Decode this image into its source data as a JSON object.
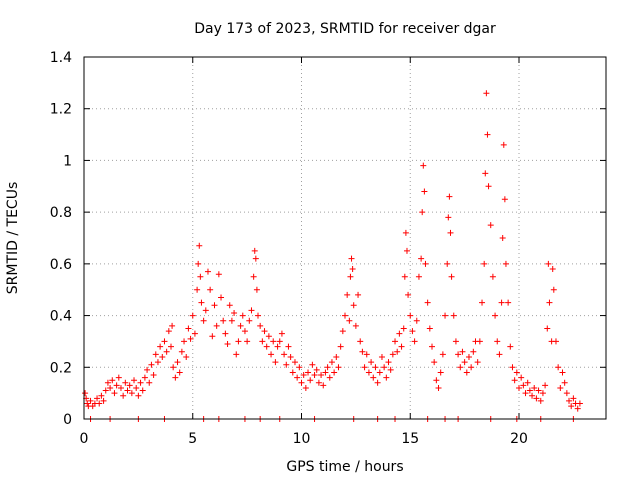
{
  "chart_data": {
    "type": "scatter",
    "title": "Day 173 of 2023, SRMTID for receiver dgar",
    "xlabel": "GPS time / hours",
    "ylabel": "SRMTID / TECUs",
    "xlim": [
      0,
      24
    ],
    "ylim": [
      0,
      1.4
    ],
    "xticks": [
      0,
      5,
      10,
      15,
      20
    ],
    "xtick_labels": [
      "0",
      "5",
      "10",
      "15",
      "20"
    ],
    "yticks": [
      0,
      0.2,
      0.4,
      0.6,
      0.8,
      1.0,
      1.2,
      1.4
    ],
    "ytick_labels": [
      "0",
      "0.2",
      "0.4",
      "0.6",
      "0.8",
      "1",
      "1.2",
      "1.4"
    ],
    "grid": true,
    "marker": "+",
    "color": "#ff0000",
    "series": [
      {
        "name": "SRMTID",
        "points": [
          [
            0.05,
            0.1
          ],
          [
            0.1,
            0.08
          ],
          [
            0.15,
            0.06
          ],
          [
            0.2,
            0.05
          ],
          [
            0.3,
            0.07
          ],
          [
            0.4,
            0.05
          ],
          [
            0.5,
            0.06
          ],
          [
            0.6,
            0.08
          ],
          [
            0.7,
            0.06
          ],
          [
            0.8,
            0.09
          ],
          [
            0.9,
            0.07
          ],
          [
            1.0,
            0.11
          ],
          [
            1.1,
            0.14
          ],
          [
            1.2,
            0.12
          ],
          [
            1.3,
            0.15
          ],
          [
            1.4,
            0.1
          ],
          [
            1.5,
            0.13
          ],
          [
            1.6,
            0.16
          ],
          [
            1.7,
            0.12
          ],
          [
            1.8,
            0.09
          ],
          [
            1.9,
            0.14
          ],
          [
            2.0,
            0.11
          ],
          [
            2.1,
            0.13
          ],
          [
            2.2,
            0.1
          ],
          [
            2.3,
            0.15
          ],
          [
            2.4,
            0.12
          ],
          [
            2.5,
            0.09
          ],
          [
            2.6,
            0.14
          ],
          [
            2.7,
            0.11
          ],
          [
            2.8,
            0.16
          ],
          [
            2.9,
            0.19
          ],
          [
            3.0,
            0.14
          ],
          [
            3.1,
            0.21
          ],
          [
            3.2,
            0.17
          ],
          [
            3.3,
            0.25
          ],
          [
            3.4,
            0.22
          ],
          [
            3.5,
            0.28
          ],
          [
            3.6,
            0.24
          ],
          [
            3.7,
            0.3
          ],
          [
            3.8,
            0.26
          ],
          [
            3.9,
            0.34
          ],
          [
            4.0,
            0.28
          ],
          [
            4.05,
            0.36
          ],
          [
            4.1,
            0.2
          ],
          [
            4.2,
            0.16
          ],
          [
            4.3,
            0.22
          ],
          [
            4.4,
            0.18
          ],
          [
            4.5,
            0.26
          ],
          [
            4.6,
            0.3
          ],
          [
            4.7,
            0.24
          ],
          [
            4.8,
            0.35
          ],
          [
            4.9,
            0.31
          ],
          [
            5.0,
            0.4
          ],
          [
            5.1,
            0.33
          ],
          [
            5.2,
            0.5
          ],
          [
            5.25,
            0.6
          ],
          [
            5.3,
            0.67
          ],
          [
            5.35,
            0.55
          ],
          [
            5.4,
            0.45
          ],
          [
            5.5,
            0.38
          ],
          [
            5.6,
            0.42
          ],
          [
            5.7,
            0.57
          ],
          [
            5.8,
            0.5
          ],
          [
            5.9,
            0.32
          ],
          [
            6.0,
            0.44
          ],
          [
            6.1,
            0.36
          ],
          [
            6.2,
            0.56
          ],
          [
            6.3,
            0.47
          ],
          [
            6.4,
            0.38
          ],
          [
            6.5,
            0.33
          ],
          [
            6.6,
            0.29
          ],
          [
            6.7,
            0.44
          ],
          [
            6.8,
            0.38
          ],
          [
            6.9,
            0.41
          ],
          [
            7.0,
            0.25
          ],
          [
            7.1,
            0.3
          ],
          [
            7.2,
            0.36
          ],
          [
            7.3,
            0.4
          ],
          [
            7.4,
            0.34
          ],
          [
            7.5,
            0.3
          ],
          [
            7.6,
            0.38
          ],
          [
            7.7,
            0.42
          ],
          [
            7.8,
            0.55
          ],
          [
            7.85,
            0.65
          ],
          [
            7.9,
            0.62
          ],
          [
            7.95,
            0.5
          ],
          [
            8.0,
            0.4
          ],
          [
            8.1,
            0.36
          ],
          [
            8.2,
            0.3
          ],
          [
            8.3,
            0.34
          ],
          [
            8.4,
            0.28
          ],
          [
            8.5,
            0.32
          ],
          [
            8.6,
            0.25
          ],
          [
            8.7,
            0.3
          ],
          [
            8.8,
            0.22
          ],
          [
            8.9,
            0.28
          ],
          [
            9.0,
            0.3
          ],
          [
            9.1,
            0.33
          ],
          [
            9.2,
            0.25
          ],
          [
            9.3,
            0.21
          ],
          [
            9.4,
            0.28
          ],
          [
            9.5,
            0.24
          ],
          [
            9.6,
            0.18
          ],
          [
            9.7,
            0.22
          ],
          [
            9.8,
            0.16
          ],
          [
            9.9,
            0.2
          ],
          [
            10.0,
            0.14
          ],
          [
            10.1,
            0.17
          ],
          [
            10.2,
            0.12
          ],
          [
            10.3,
            0.18
          ],
          [
            10.4,
            0.15
          ],
          [
            10.5,
            0.21
          ],
          [
            10.6,
            0.17
          ],
          [
            10.7,
            0.19
          ],
          [
            10.8,
            0.14
          ],
          [
            10.9,
            0.17
          ],
          [
            11.0,
            0.13
          ],
          [
            11.1,
            0.18
          ],
          [
            11.2,
            0.2
          ],
          [
            11.3,
            0.16
          ],
          [
            11.4,
            0.22
          ],
          [
            11.5,
            0.18
          ],
          [
            11.6,
            0.24
          ],
          [
            11.7,
            0.2
          ],
          [
            11.8,
            0.28
          ],
          [
            11.9,
            0.34
          ],
          [
            12.0,
            0.4
          ],
          [
            12.1,
            0.48
          ],
          [
            12.2,
            0.38
          ],
          [
            12.25,
            0.55
          ],
          [
            12.3,
            0.62
          ],
          [
            12.35,
            0.58
          ],
          [
            12.4,
            0.44
          ],
          [
            12.5,
            0.36
          ],
          [
            12.6,
            0.48
          ],
          [
            12.7,
            0.3
          ],
          [
            12.8,
            0.26
          ],
          [
            12.9,
            0.2
          ],
          [
            13.0,
            0.25
          ],
          [
            13.1,
            0.18
          ],
          [
            13.2,
            0.22
          ],
          [
            13.3,
            0.16
          ],
          [
            13.4,
            0.2
          ],
          [
            13.5,
            0.14
          ],
          [
            13.6,
            0.18
          ],
          [
            13.7,
            0.24
          ],
          [
            13.8,
            0.2
          ],
          [
            13.9,
            0.16
          ],
          [
            14.0,
            0.22
          ],
          [
            14.1,
            0.19
          ],
          [
            14.2,
            0.25
          ],
          [
            14.3,
            0.3
          ],
          [
            14.4,
            0.26
          ],
          [
            14.5,
            0.33
          ],
          [
            14.6,
            0.28
          ],
          [
            14.7,
            0.35
          ],
          [
            14.75,
            0.55
          ],
          [
            14.8,
            0.72
          ],
          [
            14.85,
            0.65
          ],
          [
            14.9,
            0.48
          ],
          [
            15.0,
            0.4
          ],
          [
            15.1,
            0.34
          ],
          [
            15.2,
            0.3
          ],
          [
            15.3,
            0.38
          ],
          [
            15.4,
            0.55
          ],
          [
            15.5,
            0.62
          ],
          [
            15.55,
            0.8
          ],
          [
            15.6,
            0.98
          ],
          [
            15.65,
            0.88
          ],
          [
            15.7,
            0.6
          ],
          [
            15.8,
            0.45
          ],
          [
            15.9,
            0.35
          ],
          [
            16.0,
            0.28
          ],
          [
            16.1,
            0.22
          ],
          [
            16.2,
            0.15
          ],
          [
            16.3,
            0.12
          ],
          [
            16.4,
            0.18
          ],
          [
            16.5,
            0.25
          ],
          [
            16.6,
            0.4
          ],
          [
            16.7,
            0.6
          ],
          [
            16.75,
            0.78
          ],
          [
            16.8,
            0.86
          ],
          [
            16.85,
            0.72
          ],
          [
            16.9,
            0.55
          ],
          [
            17.0,
            0.4
          ],
          [
            17.1,
            0.3
          ],
          [
            17.2,
            0.25
          ],
          [
            17.3,
            0.2
          ],
          [
            17.4,
            0.26
          ],
          [
            17.5,
            0.22
          ],
          [
            17.6,
            0.18
          ],
          [
            17.7,
            0.24
          ],
          [
            17.8,
            0.2
          ],
          [
            17.9,
            0.26
          ],
          [
            18.0,
            0.3
          ],
          [
            18.1,
            0.22
          ],
          [
            18.2,
            0.3
          ],
          [
            18.3,
            0.45
          ],
          [
            18.4,
            0.6
          ],
          [
            18.45,
            0.95
          ],
          [
            18.5,
            1.26
          ],
          [
            18.55,
            1.1
          ],
          [
            18.6,
            0.9
          ],
          [
            18.7,
            0.75
          ],
          [
            18.8,
            0.55
          ],
          [
            18.9,
            0.4
          ],
          [
            19.0,
            0.3
          ],
          [
            19.1,
            0.25
          ],
          [
            19.2,
            0.45
          ],
          [
            19.25,
            0.7
          ],
          [
            19.3,
            1.06
          ],
          [
            19.35,
            0.85
          ],
          [
            19.4,
            0.6
          ],
          [
            19.5,
            0.45
          ],
          [
            19.6,
            0.28
          ],
          [
            19.7,
            0.2
          ],
          [
            19.8,
            0.15
          ],
          [
            19.9,
            0.18
          ],
          [
            20.0,
            0.12
          ],
          [
            20.1,
            0.16
          ],
          [
            20.2,
            0.13
          ],
          [
            20.3,
            0.1
          ],
          [
            20.4,
            0.14
          ],
          [
            20.5,
            0.11
          ],
          [
            20.6,
            0.09
          ],
          [
            20.7,
            0.12
          ],
          [
            20.8,
            0.08
          ],
          [
            20.9,
            0.11
          ],
          [
            21.0,
            0.07
          ],
          [
            21.1,
            0.1
          ],
          [
            21.2,
            0.13
          ],
          [
            21.3,
            0.35
          ],
          [
            21.35,
            0.6
          ],
          [
            21.4,
            0.45
          ],
          [
            21.5,
            0.3
          ],
          [
            21.55,
            0.58
          ],
          [
            21.6,
            0.5
          ],
          [
            21.7,
            0.3
          ],
          [
            21.8,
            0.2
          ],
          [
            21.9,
            0.12
          ],
          [
            22.0,
            0.18
          ],
          [
            22.1,
            0.14
          ],
          [
            22.2,
            0.1
          ],
          [
            22.3,
            0.07
          ],
          [
            22.4,
            0.05
          ],
          [
            22.5,
            0.08
          ],
          [
            22.6,
            0.06
          ],
          [
            22.7,
            0.04
          ],
          [
            22.8,
            0.06
          ],
          [
            0.3,
            0.0
          ],
          [
            1.2,
            0.0
          ],
          [
            2.5,
            0.0
          ],
          [
            3.7,
            0.0
          ],
          [
            5.5,
            0.0
          ],
          [
            6.2,
            0.0
          ],
          [
            7.4,
            0.0
          ],
          [
            8.1,
            0.0
          ],
          [
            9.0,
            0.0
          ],
          [
            10.6,
            0.0
          ],
          [
            12.4,
            0.0
          ],
          [
            13.5,
            0.0
          ],
          [
            14.3,
            0.0
          ],
          [
            15.8,
            0.0
          ],
          [
            16.6,
            0.0
          ],
          [
            17.2,
            0.0
          ],
          [
            18.7,
            0.0
          ],
          [
            19.9,
            0.0
          ],
          [
            21.0,
            0.0
          ],
          [
            22.5,
            0.0
          ]
        ]
      }
    ]
  }
}
